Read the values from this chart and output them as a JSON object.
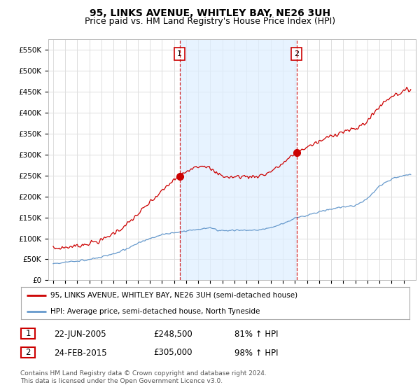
{
  "title": "95, LINKS AVENUE, WHITLEY BAY, NE26 3UH",
  "subtitle": "Price paid vs. HM Land Registry's House Price Index (HPI)",
  "ylim": [
    0,
    575000
  ],
  "yticks": [
    0,
    50000,
    100000,
    150000,
    200000,
    250000,
    300000,
    350000,
    400000,
    450000,
    500000,
    550000
  ],
  "ytick_labels": [
    "£0",
    "£50K",
    "£100K",
    "£150K",
    "£200K",
    "£250K",
    "£300K",
    "£350K",
    "£400K",
    "£450K",
    "£500K",
    "£550K"
  ],
  "red_line_color": "#cc0000",
  "blue_line_color": "#6699cc",
  "shade_color": "#ddeeff",
  "dashed_line_color": "#cc0000",
  "marker1_date": 2005.47,
  "marker1_value": 248500,
  "marker2_date": 2015.14,
  "marker2_value": 305000,
  "legend_label1": "95, LINKS AVENUE, WHITLEY BAY, NE26 3UH (semi-detached house)",
  "legend_label2": "HPI: Average price, semi-detached house, North Tyneside",
  "annotation1_label": "1",
  "annotation1_date": "22-JUN-2005",
  "annotation1_price": "£248,500",
  "annotation1_hpi": "81% ↑ HPI",
  "annotation2_label": "2",
  "annotation2_date": "24-FEB-2015",
  "annotation2_price": "£305,000",
  "annotation2_hpi": "98% ↑ HPI",
  "footer": "Contains HM Land Registry data © Crown copyright and database right 2024.\nThis data is licensed under the Open Government Licence v3.0.",
  "background_color": "#ffffff",
  "grid_color": "#dddddd",
  "title_fontsize": 10,
  "subtitle_fontsize": 9,
  "tick_fontsize": 7.5
}
